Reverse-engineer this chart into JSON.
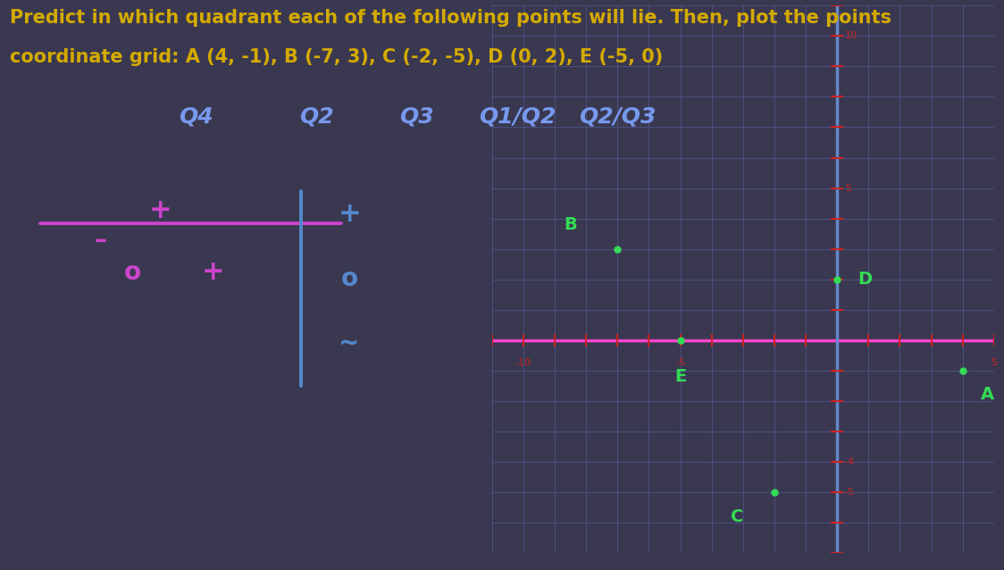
{
  "bg_color": "#3a3850",
  "grid_color": "#5560a0",
  "axis_color_x": "#ff44cc",
  "axis_color_y": "#6688cc",
  "title_line1": "Predict in which quadrant each of the following points will lie. Then, plot the points",
  "title_line2": "coordinate grid: A (4, -1), B (-7, 3), C (-2, -5), D (0, 2), E (-5, 0)",
  "title_color": "#d4aa00",
  "title_fontsize": 15,
  "quadrant_labels": [
    "Q4",
    "Q2",
    "Q3",
    "Q1/Q2",
    "Q2/Q3"
  ],
  "quadrant_color": "#7799ee",
  "quadrant_fontsize": 18,
  "points": {
    "A": [
      4,
      -1
    ],
    "B": [
      -7,
      3
    ],
    "C": [
      -2,
      -5
    ],
    "D": [
      0,
      2
    ],
    "E": [
      -5,
      0
    ]
  },
  "point_color": "#33dd55",
  "point_dot_color": "#33dd55",
  "xlim": [
    -11,
    5
  ],
  "ylim": [
    -7,
    11
  ],
  "tick_color": "#cc2222",
  "tick_label_color": "#cc2222",
  "left_panel_axis_color_x": "#cc44cc",
  "left_panel_axis_color_y": "#5588cc",
  "left_panel_plus_color": "#5588cc",
  "left_panel_minus_color": "#cc44cc",
  "left_panel_zero_color": "#cc44cc",
  "left_panel_zero2_color": "#5588cc",
  "left_panel_tilde_color": "#5588cc",
  "grid_alpha": 0.6,
  "grid_linewidth": 0.7
}
